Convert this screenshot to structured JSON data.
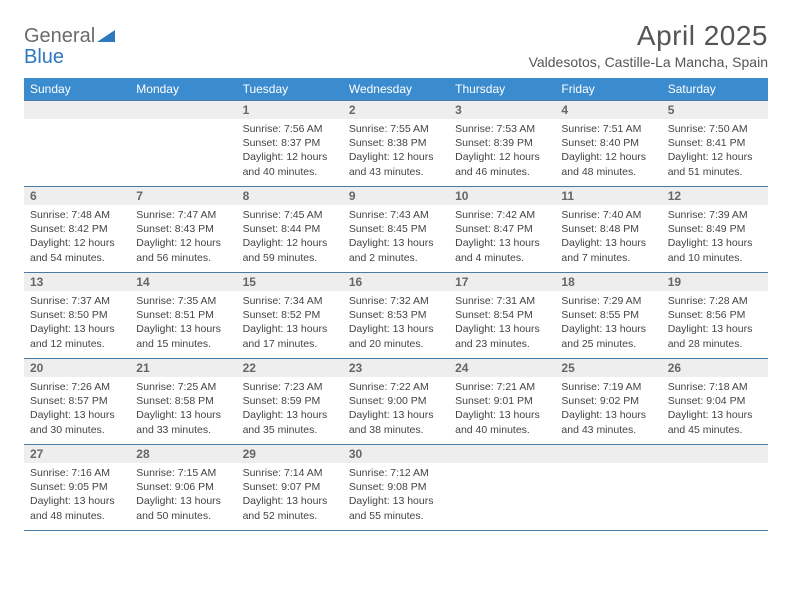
{
  "logo": {
    "general": "General",
    "blue": "Blue"
  },
  "title": {
    "month": "April 2025",
    "location": "Valdesotos, Castille-La Mancha, Spain"
  },
  "styling": {
    "header_bg": "#3b8bcf",
    "header_text": "#ffffff",
    "daynum_bg": "#eeeeee",
    "daynum_border": "#4a7aa8",
    "body_text": "#444444",
    "title_color": "#555555",
    "logo_gray": "#6b6b6b",
    "logo_blue": "#2e78c0",
    "page_bg": "#ffffff",
    "month_fontsize_pt": 21,
    "location_fontsize_pt": 11,
    "dayheader_fontsize_pt": 9,
    "body_fontsize_pt": 8
  },
  "weekdays": [
    "Sunday",
    "Monday",
    "Tuesday",
    "Wednesday",
    "Thursday",
    "Friday",
    "Saturday"
  ],
  "weeks": [
    [
      null,
      null,
      {
        "n": "1",
        "sr": "Sunrise: 7:56 AM",
        "ss": "Sunset: 8:37 PM",
        "dl": "Daylight: 12 hours and 40 minutes."
      },
      {
        "n": "2",
        "sr": "Sunrise: 7:55 AM",
        "ss": "Sunset: 8:38 PM",
        "dl": "Daylight: 12 hours and 43 minutes."
      },
      {
        "n": "3",
        "sr": "Sunrise: 7:53 AM",
        "ss": "Sunset: 8:39 PM",
        "dl": "Daylight: 12 hours and 46 minutes."
      },
      {
        "n": "4",
        "sr": "Sunrise: 7:51 AM",
        "ss": "Sunset: 8:40 PM",
        "dl": "Daylight: 12 hours and 48 minutes."
      },
      {
        "n": "5",
        "sr": "Sunrise: 7:50 AM",
        "ss": "Sunset: 8:41 PM",
        "dl": "Daylight: 12 hours and 51 minutes."
      }
    ],
    [
      {
        "n": "6",
        "sr": "Sunrise: 7:48 AM",
        "ss": "Sunset: 8:42 PM",
        "dl": "Daylight: 12 hours and 54 minutes."
      },
      {
        "n": "7",
        "sr": "Sunrise: 7:47 AM",
        "ss": "Sunset: 8:43 PM",
        "dl": "Daylight: 12 hours and 56 minutes."
      },
      {
        "n": "8",
        "sr": "Sunrise: 7:45 AM",
        "ss": "Sunset: 8:44 PM",
        "dl": "Daylight: 12 hours and 59 minutes."
      },
      {
        "n": "9",
        "sr": "Sunrise: 7:43 AM",
        "ss": "Sunset: 8:45 PM",
        "dl": "Daylight: 13 hours and 2 minutes."
      },
      {
        "n": "10",
        "sr": "Sunrise: 7:42 AM",
        "ss": "Sunset: 8:47 PM",
        "dl": "Daylight: 13 hours and 4 minutes."
      },
      {
        "n": "11",
        "sr": "Sunrise: 7:40 AM",
        "ss": "Sunset: 8:48 PM",
        "dl": "Daylight: 13 hours and 7 minutes."
      },
      {
        "n": "12",
        "sr": "Sunrise: 7:39 AM",
        "ss": "Sunset: 8:49 PM",
        "dl": "Daylight: 13 hours and 10 minutes."
      }
    ],
    [
      {
        "n": "13",
        "sr": "Sunrise: 7:37 AM",
        "ss": "Sunset: 8:50 PM",
        "dl": "Daylight: 13 hours and 12 minutes."
      },
      {
        "n": "14",
        "sr": "Sunrise: 7:35 AM",
        "ss": "Sunset: 8:51 PM",
        "dl": "Daylight: 13 hours and 15 minutes."
      },
      {
        "n": "15",
        "sr": "Sunrise: 7:34 AM",
        "ss": "Sunset: 8:52 PM",
        "dl": "Daylight: 13 hours and 17 minutes."
      },
      {
        "n": "16",
        "sr": "Sunrise: 7:32 AM",
        "ss": "Sunset: 8:53 PM",
        "dl": "Daylight: 13 hours and 20 minutes."
      },
      {
        "n": "17",
        "sr": "Sunrise: 7:31 AM",
        "ss": "Sunset: 8:54 PM",
        "dl": "Daylight: 13 hours and 23 minutes."
      },
      {
        "n": "18",
        "sr": "Sunrise: 7:29 AM",
        "ss": "Sunset: 8:55 PM",
        "dl": "Daylight: 13 hours and 25 minutes."
      },
      {
        "n": "19",
        "sr": "Sunrise: 7:28 AM",
        "ss": "Sunset: 8:56 PM",
        "dl": "Daylight: 13 hours and 28 minutes."
      }
    ],
    [
      {
        "n": "20",
        "sr": "Sunrise: 7:26 AM",
        "ss": "Sunset: 8:57 PM",
        "dl": "Daylight: 13 hours and 30 minutes."
      },
      {
        "n": "21",
        "sr": "Sunrise: 7:25 AM",
        "ss": "Sunset: 8:58 PM",
        "dl": "Daylight: 13 hours and 33 minutes."
      },
      {
        "n": "22",
        "sr": "Sunrise: 7:23 AM",
        "ss": "Sunset: 8:59 PM",
        "dl": "Daylight: 13 hours and 35 minutes."
      },
      {
        "n": "23",
        "sr": "Sunrise: 7:22 AM",
        "ss": "Sunset: 9:00 PM",
        "dl": "Daylight: 13 hours and 38 minutes."
      },
      {
        "n": "24",
        "sr": "Sunrise: 7:21 AM",
        "ss": "Sunset: 9:01 PM",
        "dl": "Daylight: 13 hours and 40 minutes."
      },
      {
        "n": "25",
        "sr": "Sunrise: 7:19 AM",
        "ss": "Sunset: 9:02 PM",
        "dl": "Daylight: 13 hours and 43 minutes."
      },
      {
        "n": "26",
        "sr": "Sunrise: 7:18 AM",
        "ss": "Sunset: 9:04 PM",
        "dl": "Daylight: 13 hours and 45 minutes."
      }
    ],
    [
      {
        "n": "27",
        "sr": "Sunrise: 7:16 AM",
        "ss": "Sunset: 9:05 PM",
        "dl": "Daylight: 13 hours and 48 minutes."
      },
      {
        "n": "28",
        "sr": "Sunrise: 7:15 AM",
        "ss": "Sunset: 9:06 PM",
        "dl": "Daylight: 13 hours and 50 minutes."
      },
      {
        "n": "29",
        "sr": "Sunrise: 7:14 AM",
        "ss": "Sunset: 9:07 PM",
        "dl": "Daylight: 13 hours and 52 minutes."
      },
      {
        "n": "30",
        "sr": "Sunrise: 7:12 AM",
        "ss": "Sunset: 9:08 PM",
        "dl": "Daylight: 13 hours and 55 minutes."
      },
      null,
      null,
      null
    ]
  ]
}
